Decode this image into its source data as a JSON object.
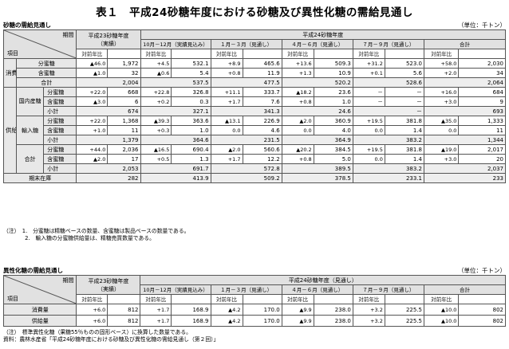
{
  "title": "表１　平成24砂糖年度における砂糖及び異性化糖の需給見通し",
  "sugar": {
    "section_label": "砂糖の需給見通し",
    "unit": "（単位：千トン）",
    "head": {
      "period": "期間",
      "item": "項目",
      "fy23": "平成23砂糖年度",
      "fy23_sub": "（実績）",
      "fy24": "平成24砂糖年度",
      "q1": "10月－12月（実績見込み）",
      "q2": "１月－３月（見通し）",
      "q3": "４月－６月（見通し）",
      "q4": "７月－９月（見通し）",
      "total": "合計",
      "yoy": "対前年比"
    },
    "cons": {
      "group": "消費量",
      "r1_label": "分蜜糖",
      "r1": [
        [
          "▲46.0",
          "1,972"
        ],
        [
          "+4.5",
          "532.1"
        ],
        [
          "+8.9",
          "465.6"
        ],
        [
          "+13.6",
          "509.3"
        ],
        [
          "+31.2",
          "523.0"
        ],
        [
          "+58.0",
          "2,030"
        ]
      ],
      "r2_label": "含蜜糖",
      "r2": [
        [
          "▲1.0",
          "32"
        ],
        [
          "▲0.6",
          "5.4"
        ],
        [
          "+0.8",
          "11.9"
        ],
        [
          "+1.3",
          "10.9"
        ],
        [
          "+0.1",
          "5.6"
        ],
        [
          "+2.0",
          "34"
        ]
      ],
      "r3_label": "合計",
      "r3": [
        "2,004",
        "537.5",
        "477.5",
        "520.2",
        "528.6",
        "2,064"
      ]
    },
    "supply": {
      "group": "供給量",
      "dom_label": "国内産糖",
      "d1_label": "分蜜糖",
      "d1": [
        [
          "+22.0",
          "668"
        ],
        [
          "+22.8",
          "326.8"
        ],
        [
          "+11.1",
          "333.7"
        ],
        [
          "▲18.2",
          "23.6"
        ],
        [
          "－",
          "－"
        ],
        [
          "+16.0",
          "684"
        ]
      ],
      "d2_label": "含蜜糖",
      "d2": [
        [
          "▲3.0",
          "6"
        ],
        [
          "+0.2",
          "0.3"
        ],
        [
          "+1.7",
          "7.6"
        ],
        [
          "+0.8",
          "1.0"
        ],
        [
          "－",
          "－"
        ],
        [
          "+3.0",
          "9"
        ]
      ],
      "d3_label": "小計",
      "d3": [
        "674",
        "327.1",
        "341.3",
        "24.6",
        "－",
        "693"
      ],
      "imp_label": "輸入糖",
      "i1_label": "分蜜糖",
      "i1": [
        [
          "+22.0",
          "1,368"
        ],
        [
          "▲39.3",
          "363.6"
        ],
        [
          "▲13.1",
          "226.9"
        ],
        [
          "▲2.0",
          "360.9"
        ],
        [
          "+19.5",
          "381.8"
        ],
        [
          "▲35.0",
          "1,333"
        ]
      ],
      "i2_label": "含蜜糖",
      "i2": [
        [
          "+1.0",
          "11"
        ],
        [
          "+0.3",
          "1.0"
        ],
        [
          "0.0",
          "4.6"
        ],
        [
          "0.0",
          "4.0"
        ],
        [
          "0.0",
          "1.4"
        ],
        [
          "0.0",
          "11"
        ]
      ],
      "i3_label": "小計",
      "i3": [
        "1,379",
        "364.6",
        "231.5",
        "364.9",
        "383.2",
        "1,344"
      ],
      "tot_label": "合計",
      "t1_label": "分蜜糖",
      "t1": [
        [
          "+44.0",
          "2,036"
        ],
        [
          "▲16.5",
          "690.4"
        ],
        [
          "▲2.0",
          "560.6"
        ],
        [
          "▲20.2",
          "384.5"
        ],
        [
          "+19.5",
          "381.8"
        ],
        [
          "▲19.0",
          "2,017"
        ]
      ],
      "t2_label": "含蜜糖",
      "t2": [
        [
          "▲2.0",
          "17"
        ],
        [
          "+0.5",
          "1.3"
        ],
        [
          "+1.7",
          "12.2"
        ],
        [
          "+0.8",
          "5.0"
        ],
        [
          "0.0",
          "1.4"
        ],
        [
          "+3.0",
          "20"
        ]
      ],
      "t3_label": "小計",
      "t3": [
        "2,053",
        "691.7",
        "572.8",
        "389.5",
        "383.2",
        "2,037"
      ]
    },
    "stock": {
      "label": "期末在庫",
      "values": [
        "282",
        "413.9",
        "509.2",
        "378.5",
        "233.1",
        "233"
      ]
    },
    "notes": [
      "（注）　1.　分蜜糖は精糖ベースの数量、含蜜糖は製品ベースの数量である。",
      "　　　　2.　輸入糖の分蜜糖供給量は、精糖売買数量である。"
    ]
  },
  "hfcs": {
    "section_label": "異性化糖の需給見通し",
    "unit": "（単位：千トン）",
    "head": {
      "period": "期間",
      "item": "項目",
      "fy23": "平成23砂糖年度",
      "fy23_sub": "（実績）",
      "fy24": "平成24砂糖年度（見通し）",
      "q1": "10月－12月（実績見込み）",
      "q2": "１月－３月（見通し）",
      "q3": "４月－６月（見通し）",
      "q4": "７月－９月（見通し）",
      "total": "合計",
      "yoy": "対前年比"
    },
    "cons_label": "消費量",
    "cons": [
      [
        "+6.0",
        "812"
      ],
      [
        "+1.7",
        "168.9"
      ],
      [
        "▲4.2",
        "170.0"
      ],
      [
        "▲9.9",
        "238.0"
      ],
      [
        "+3.2",
        "225.5"
      ],
      [
        "▲10.0",
        "802"
      ]
    ],
    "supply_label": "供給量",
    "supply": [
      [
        "+6.0",
        "812"
      ],
      [
        "+1.7",
        "168.9"
      ],
      [
        "▲4.2",
        "170.0"
      ],
      [
        "▲9.9",
        "238.0"
      ],
      [
        "+3.2",
        "225.5"
      ],
      [
        "▲10.0",
        "802"
      ]
    ],
    "notes": [
      "（注）　標準異性化糖（果糖55％ものの固形ベース）に換算した数量である。",
      "資料：農林水産省「平成24砂糖年度における砂糖及び異性化糖の需給見通し（第２回）」"
    ]
  }
}
